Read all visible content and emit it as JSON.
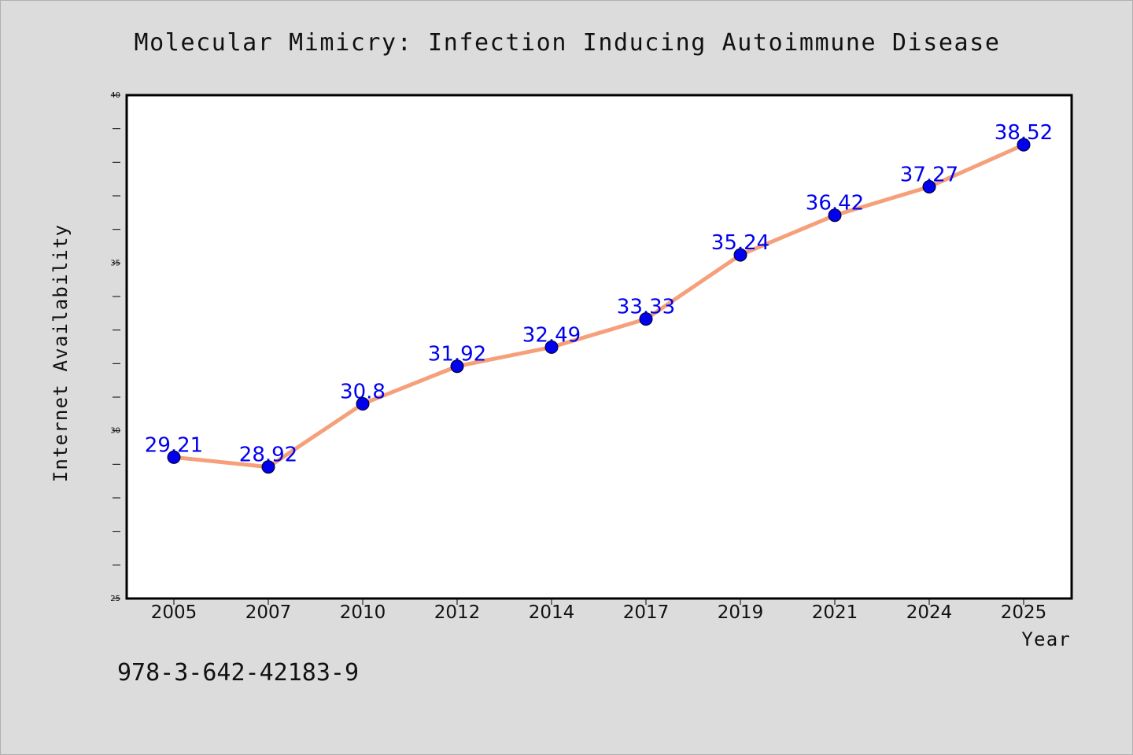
{
  "chart_data": {
    "type": "line",
    "title": "Molecular Mimicry: Infection Inducing Autoimmune Disease",
    "xlabel": "Year",
    "ylabel": "Internet Availability",
    "categories": [
      "2005",
      "2007",
      "2010",
      "2012",
      "2014",
      "2017",
      "2019",
      "2021",
      "2024",
      "2025"
    ],
    "series": [
      {
        "values": [
          29.21,
          28.92,
          30.8,
          31.92,
          32.49,
          33.33,
          35.24,
          36.42,
          37.27,
          38.52
        ],
        "value_labels": [
          "29.21",
          "28.92",
          "30.8",
          "31.92",
          "32.49",
          "33.33",
          "35.24",
          "36.42",
          "37.27",
          "38.52"
        ],
        "line_color": "#f5a07a",
        "marker_color": "#0000ee"
      }
    ],
    "ylim": [
      25,
      40
    ],
    "yticks": [
      "25",
      "30",
      "35",
      "40"
    ],
    "grid": false,
    "legend": "none",
    "annotation": "978-3-642-42183-9"
  }
}
